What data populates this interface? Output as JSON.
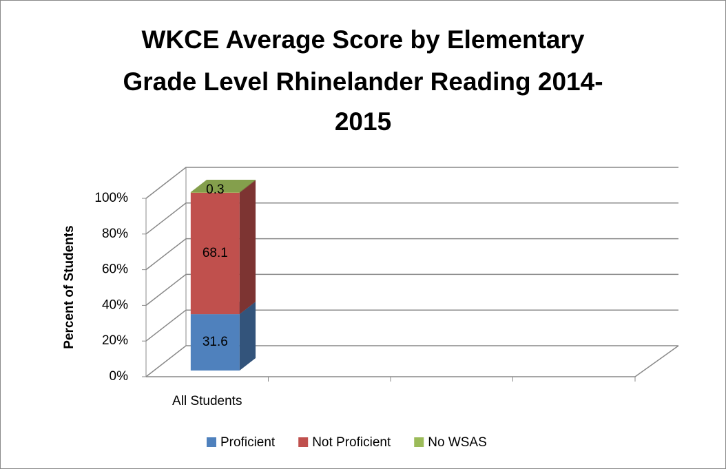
{
  "chart_data": {
    "type": "bar3d_stacked",
    "title": [
      "WKCE Average Score by Elementary",
      "Grade Level Rhinelander Reading 2014-",
      "2015"
    ],
    "y_label": "Percent of Students",
    "categories": [
      "All Students",
      null,
      null,
      null
    ],
    "series": [
      {
        "name": "Proficient",
        "color": "#4f81bd",
        "values": [
          31.6,
          null,
          null,
          null
        ]
      },
      {
        "name": "Not Proficient",
        "color": "#c0504d",
        "values": [
          68.1,
          null,
          null,
          null
        ]
      },
      {
        "name": "No WSAS",
        "color": "#9bbb59",
        "values": [
          0.3,
          null,
          null,
          null
        ]
      }
    ],
    "ylim": [
      0,
      100
    ],
    "yticks": [
      {
        "value": 0,
        "label": "0%"
      },
      {
        "value": 20,
        "label": "20%"
      },
      {
        "value": 40,
        "label": "40%"
      },
      {
        "value": 60,
        "label": "60%"
      },
      {
        "value": 80,
        "label": "80%"
      },
      {
        "value": 100,
        "label": "100%"
      }
    ],
    "grid": true,
    "legend": "bottom"
  }
}
